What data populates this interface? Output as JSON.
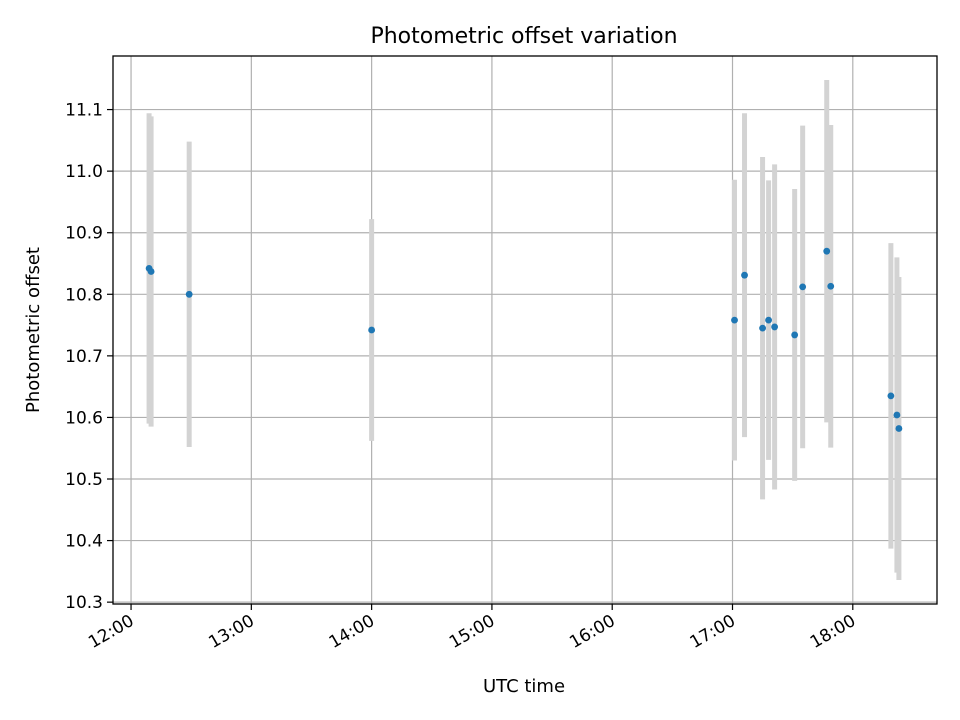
{
  "chart_data": {
    "type": "scatter",
    "title": "Photometric offset variation",
    "xlabel": "UTC time",
    "ylabel": "Photometric offset",
    "xlim": [
      "11:51",
      "18:42"
    ],
    "ylim": [
      10.297,
      11.187
    ],
    "x_ticks": [
      "12:00",
      "13:00",
      "14:00",
      "15:00",
      "16:00",
      "17:00",
      "18:00"
    ],
    "y_ticks": [
      "10.3",
      "10.4",
      "10.5",
      "10.6",
      "10.7",
      "10.8",
      "10.9",
      "11.0",
      "11.1"
    ],
    "grid": true,
    "colors": {
      "points": "#1f77b4",
      "error_bars": "#d3d3d3"
    },
    "series": [
      {
        "points": [
          {
            "x": "12:09",
            "y": 10.842,
            "err": 0.252
          },
          {
            "x": "12:10",
            "y": 10.837,
            "err": 0.252
          },
          {
            "x": "12:29",
            "y": 10.8,
            "err": 0.248
          },
          {
            "x": "14:00",
            "y": 10.742,
            "err": 0.18
          },
          {
            "x": "17:01",
            "y": 10.758,
            "err": 0.228
          },
          {
            "x": "17:06",
            "y": 10.831,
            "err": 0.263
          },
          {
            "x": "17:15",
            "y": 10.745,
            "err": 0.278
          },
          {
            "x": "17:18",
            "y": 10.758,
            "err": 0.227
          },
          {
            "x": "17:21",
            "y": 10.747,
            "err": 0.264
          },
          {
            "x": "17:31",
            "y": 10.734,
            "err": 0.237
          },
          {
            "x": "17:35",
            "y": 10.812,
            "err": 0.262
          },
          {
            "x": "17:47",
            "y": 10.87,
            "err": 0.278
          },
          {
            "x": "17:49",
            "y": 10.813,
            "err": 0.262
          },
          {
            "x": "18:19",
            "y": 10.635,
            "err": 0.248
          },
          {
            "x": "18:22",
            "y": 10.604,
            "err": 0.256
          },
          {
            "x": "18:23",
            "y": 10.582,
            "err": 0.246
          }
        ]
      }
    ]
  }
}
